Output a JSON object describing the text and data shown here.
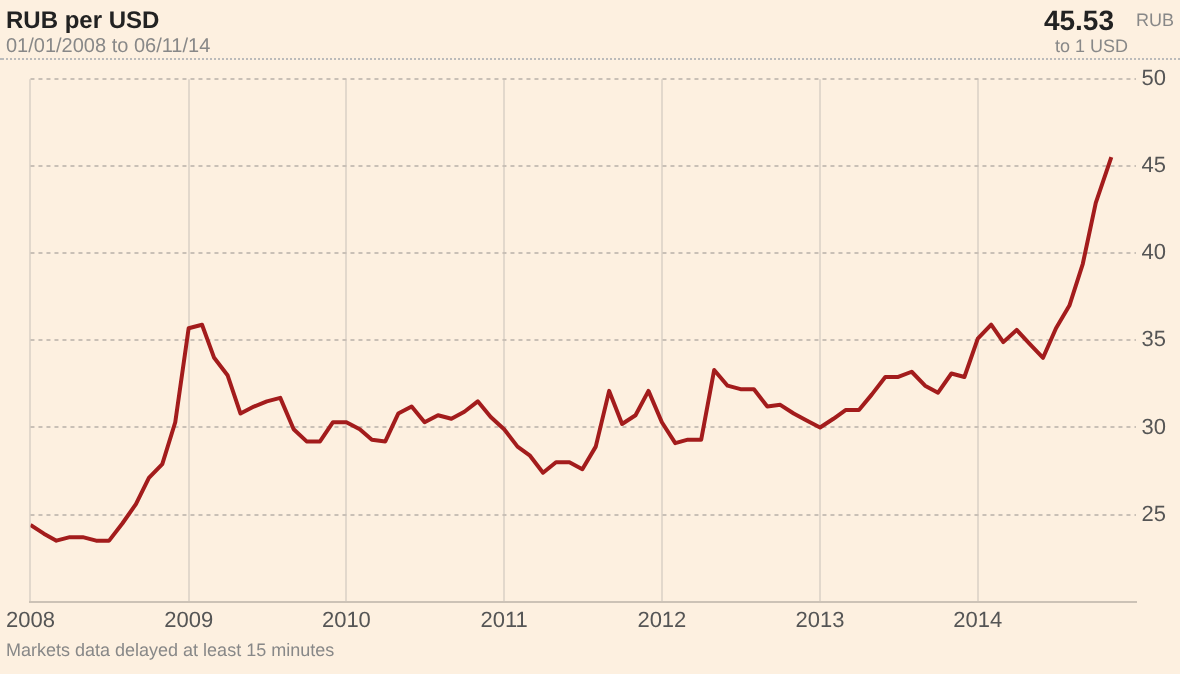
{
  "chart_data": {
    "type": "line",
    "title": "RUB per USD",
    "subtitle": "01/01/2008 to 06/11/14",
    "annotations": [
      "45.53",
      "RUB",
      "to 1 USD",
      "Markets data delayed at least 15 minutes"
    ],
    "x": [
      "2008-01",
      "2008-02",
      "2008-03",
      "2008-04",
      "2008-05",
      "2008-06",
      "2008-07",
      "2008-08",
      "2008-09",
      "2008-10",
      "2008-11",
      "2008-12",
      "2009-01",
      "2009-02",
      "2009-03",
      "2009-04",
      "2009-05",
      "2009-06",
      "2009-07",
      "2009-08",
      "2009-09",
      "2009-10",
      "2009-11",
      "2009-12",
      "2010-01",
      "2010-02",
      "2010-03",
      "2010-04",
      "2010-05",
      "2010-06",
      "2010-07",
      "2010-08",
      "2010-09",
      "2010-10",
      "2010-11",
      "2010-12",
      "2011-01",
      "2011-02",
      "2011-03",
      "2011-04",
      "2011-05",
      "2011-06",
      "2011-07",
      "2011-08",
      "2011-09",
      "2011-10",
      "2011-11",
      "2011-12",
      "2012-01",
      "2012-02",
      "2012-03",
      "2012-04",
      "2012-05",
      "2012-06",
      "2012-07",
      "2012-08",
      "2012-09",
      "2012-10",
      "2012-11",
      "2012-12",
      "2013-01",
      "2013-02",
      "2013-03",
      "2013-04",
      "2013-05",
      "2013-06",
      "2013-07",
      "2013-08",
      "2013-09",
      "2013-10",
      "2013-11",
      "2013-12",
      "2014-01",
      "2014-02",
      "2014-03",
      "2014-04",
      "2014-05",
      "2014-06",
      "2014-07",
      "2014-08",
      "2014-09",
      "2014-10",
      "2014-11-06"
    ],
    "series": [
      {
        "color": "#a31c1c",
        "values": [
          24.4,
          23.9,
          23.5,
          23.7,
          23.7,
          23.5,
          23.5,
          24.5,
          25.6,
          27.1,
          27.9,
          30.3,
          35.7,
          35.9,
          34.0,
          33.0,
          30.8,
          31.2,
          31.5,
          31.7,
          29.9,
          29.2,
          29.2,
          30.3,
          30.3,
          29.9,
          29.3,
          29.2,
          30.8,
          31.2,
          30.3,
          30.7,
          30.5,
          30.9,
          31.5,
          30.6,
          29.9,
          28.9,
          28.4,
          27.4,
          28.0,
          28.0,
          27.6,
          28.9,
          32.1,
          30.2,
          30.7,
          32.1,
          30.3,
          29.1,
          29.3,
          29.3,
          33.3,
          32.4,
          32.2,
          32.2,
          31.2,
          31.3,
          30.8,
          30.4,
          30.0,
          30.5,
          31.0,
          31.0,
          31.9,
          32.9,
          32.9,
          33.2,
          32.4,
          32.0,
          33.1,
          32.9,
          35.1,
          35.9,
          34.9,
          35.6,
          34.8,
          34.0,
          35.7,
          37.0,
          39.4,
          42.9,
          45.53
        ]
      }
    ],
    "xlim": [
      "2008-01-01",
      "2015-01-01"
    ],
    "xticks": [
      "2008",
      "2009",
      "2010",
      "2011",
      "2012",
      "2013",
      "2014"
    ],
    "ylim": [
      20,
      50
    ],
    "yticks": [
      25,
      30,
      35,
      40,
      45,
      50
    ],
    "grid": true,
    "legend": false,
    "marker": "none",
    "line_style": "solid"
  }
}
